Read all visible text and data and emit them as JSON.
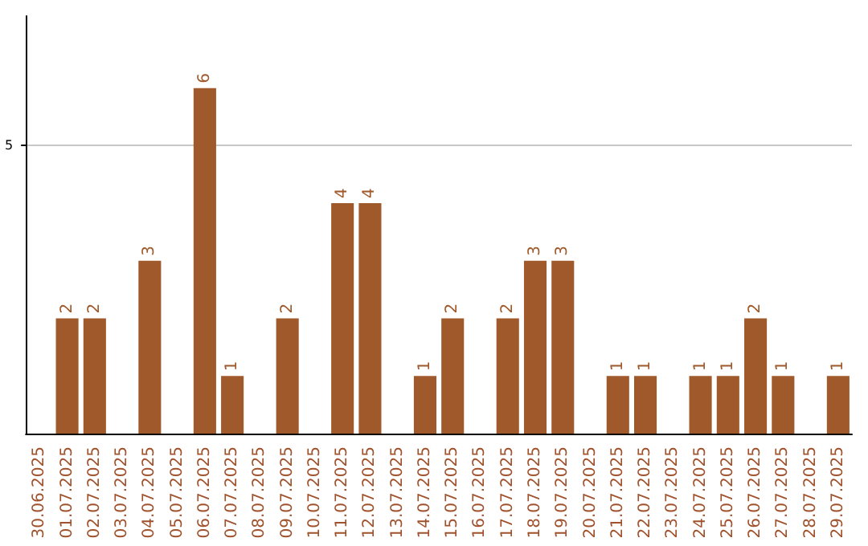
{
  "chart_data": {
    "type": "bar",
    "categories": [
      "30.06.2025",
      "01.07.2025",
      "02.07.2025",
      "03.07.2025",
      "04.07.2025",
      "05.07.2025",
      "06.07.2025",
      "07.07.2025",
      "08.07.2025",
      "09.07.2025",
      "10.07.2025",
      "11.07.2025",
      "12.07.2025",
      "13.07.2025",
      "14.07.2025",
      "15.07.2025",
      "16.07.2025",
      "17.07.2025",
      "18.07.2025",
      "19.07.2025",
      "20.07.2025",
      "21.07.2025",
      "22.07.2025",
      "23.07.2025",
      "24.07.2025",
      "25.07.2025",
      "26.07.2025",
      "27.07.2025",
      "28.07.2025",
      "29.07.2025"
    ],
    "values": [
      0,
      2,
      2,
      0,
      3,
      0,
      6,
      1,
      0,
      2,
      0,
      4,
      4,
      0,
      1,
      2,
      0,
      2,
      3,
      3,
      0,
      1,
      1,
      0,
      1,
      1,
      2,
      1,
      0,
      1
    ],
    "value_labels": [
      null,
      "2",
      "2",
      null,
      "3",
      null,
      "6",
      "1",
      null,
      "2",
      null,
      "4",
      "4",
      null,
      "1",
      "2",
      null,
      "2",
      "3",
      "3",
      null,
      "1",
      "1",
      null,
      "1",
      "1",
      "2",
      "1",
      null,
      "1"
    ],
    "color": "#a0592a",
    "ylim": [
      0,
      7.25
    ],
    "yticks": [
      5
    ],
    "grid": "y"
  }
}
